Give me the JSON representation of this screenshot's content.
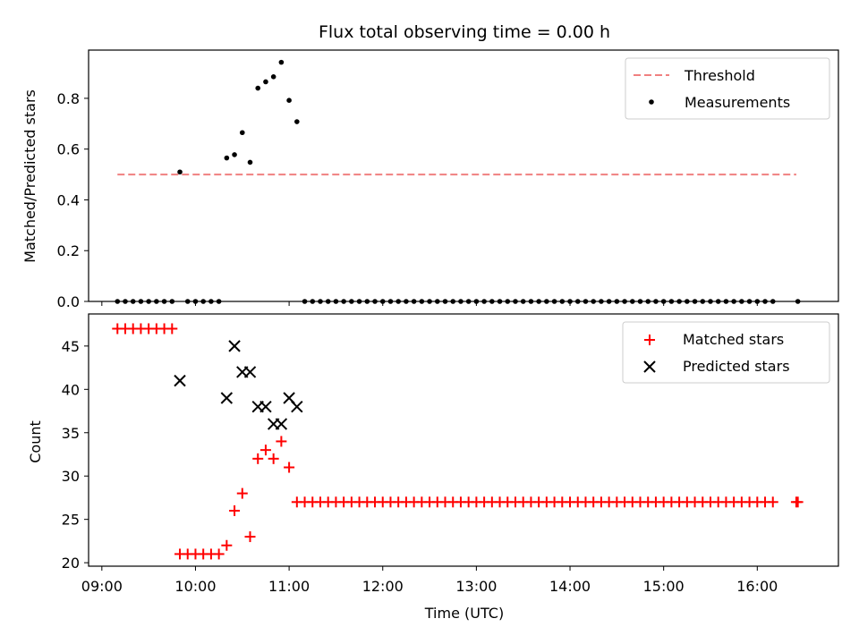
{
  "title": "Flux total observing time = 0.00 h",
  "chart_data": [
    {
      "type": "scatter",
      "ylabel": "Matched/Predicted stars",
      "ylim": [
        0,
        0.99
      ],
      "yticks": [
        0,
        0.2,
        0.4,
        0.6,
        0.8
      ],
      "ytick_labels": [
        "0.0",
        "0.2",
        "0.4",
        "0.6",
        "0.8"
      ],
      "legend_position": "top-right",
      "threshold": {
        "name": "Threshold",
        "y": 0.5,
        "x_start": "09:10",
        "x_end": "16:25",
        "color": "#f08080"
      },
      "measurements": {
        "name": "Measurements",
        "color": "#000000",
        "x": [
          "09:10",
          "09:15",
          "09:20",
          "09:25",
          "09:30",
          "09:35",
          "09:40",
          "09:45",
          "09:50",
          "09:55",
          "10:00",
          "10:05",
          "10:10",
          "10:15",
          "10:20",
          "10:25",
          "10:30",
          "10:35",
          "10:40",
          "10:45",
          "10:50",
          "10:55",
          "11:00",
          "11:05",
          "11:10",
          "11:15",
          "11:20",
          "11:25",
          "11:30",
          "11:35",
          "11:40",
          "11:45",
          "11:50",
          "11:55",
          "12:00",
          "12:05",
          "12:10",
          "12:15",
          "12:20",
          "12:25",
          "12:30",
          "12:35",
          "12:40",
          "12:45",
          "12:50",
          "12:55",
          "13:00",
          "13:05",
          "13:10",
          "13:15",
          "13:20",
          "13:25",
          "13:30",
          "13:35",
          "13:40",
          "13:45",
          "13:50",
          "13:55",
          "14:00",
          "14:05",
          "14:10",
          "14:15",
          "14:20",
          "14:25",
          "14:30",
          "14:35",
          "14:40",
          "14:45",
          "14:50",
          "14:55",
          "15:00",
          "15:05",
          "15:10",
          "15:15",
          "15:20",
          "15:25",
          "15:30",
          "15:35",
          "15:40",
          "15:45",
          "15:50",
          "15:55",
          "16:00",
          "16:05",
          "16:10",
          "16:26"
        ],
        "y": [
          0,
          0,
          0,
          0,
          0,
          0,
          0,
          0,
          0.51,
          0,
          0,
          0,
          0,
          0,
          0.565,
          0.578,
          0.665,
          0.548,
          0.84,
          0.865,
          0.885,
          0.942,
          0.792,
          0.708,
          0,
          0,
          0,
          0,
          0,
          0,
          0,
          0,
          0,
          0,
          0,
          0,
          0,
          0,
          0,
          0,
          0,
          0,
          0,
          0,
          0,
          0,
          0,
          0,
          0,
          0,
          0,
          0,
          0,
          0,
          0,
          0,
          0,
          0,
          0,
          0,
          0,
          0,
          0,
          0,
          0,
          0,
          0,
          0,
          0,
          0,
          0,
          0,
          0,
          0,
          0,
          0,
          0,
          0,
          0,
          0,
          0,
          0,
          0,
          0,
          0,
          0
        ]
      }
    },
    {
      "type": "scatter",
      "xlabel": "Time (UTC)",
      "ylabel": "Count",
      "ylim": [
        19.6,
        48.7
      ],
      "yticks": [
        20,
        25,
        30,
        35,
        40,
        45
      ],
      "ytick_labels": [
        "20",
        "25",
        "30",
        "35",
        "40",
        "45"
      ],
      "xticks": [
        "09:00",
        "10:00",
        "11:00",
        "12:00",
        "13:00",
        "14:00",
        "15:00",
        "16:00"
      ],
      "legend_position": "top-right",
      "matched": {
        "name": "Matched stars",
        "color": "#ff0000",
        "x": [
          "09:10",
          "09:15",
          "09:20",
          "09:25",
          "09:30",
          "09:35",
          "09:40",
          "09:45",
          "09:50",
          "09:55",
          "10:00",
          "10:05",
          "10:10",
          "10:15",
          "10:20",
          "10:25",
          "10:30",
          "10:35",
          "10:40",
          "10:45",
          "10:50",
          "10:55",
          "11:00",
          "11:05",
          "11:10",
          "11:15",
          "11:20",
          "11:25",
          "11:30",
          "11:35",
          "11:40",
          "11:45",
          "11:50",
          "11:55",
          "12:00",
          "12:05",
          "12:10",
          "12:15",
          "12:20",
          "12:25",
          "12:30",
          "12:35",
          "12:40",
          "12:45",
          "12:50",
          "12:55",
          "13:00",
          "13:05",
          "13:10",
          "13:15",
          "13:20",
          "13:25",
          "13:30",
          "13:35",
          "13:40",
          "13:45",
          "13:50",
          "13:55",
          "14:00",
          "14:05",
          "14:10",
          "14:15",
          "14:20",
          "14:25",
          "14:30",
          "14:35",
          "14:40",
          "14:45",
          "14:50",
          "14:55",
          "15:00",
          "15:05",
          "15:10",
          "15:15",
          "15:20",
          "15:25",
          "15:30",
          "15:35",
          "15:40",
          "15:45",
          "15:50",
          "15:55",
          "16:00",
          "16:05",
          "16:10",
          "16:25",
          "16:26"
        ],
        "y": [
          47,
          47,
          47,
          47,
          47,
          47,
          47,
          47,
          21,
          21,
          21,
          21,
          21,
          21,
          22,
          26,
          28,
          23,
          32,
          33,
          32,
          34,
          31,
          27,
          27,
          27,
          27,
          27,
          27,
          27,
          27,
          27,
          27,
          27,
          27,
          27,
          27,
          27,
          27,
          27,
          27,
          27,
          27,
          27,
          27,
          27,
          27,
          27,
          27,
          27,
          27,
          27,
          27,
          27,
          27,
          27,
          27,
          27,
          27,
          27,
          27,
          27,
          27,
          27,
          27,
          27,
          27,
          27,
          27,
          27,
          27,
          27,
          27,
          27,
          27,
          27,
          27,
          27,
          27,
          27,
          27,
          27,
          27,
          27,
          27,
          27,
          27
        ]
      },
      "predicted": {
        "name": "Predicted stars",
        "color": "#000000",
        "x": [
          "09:50",
          "10:20",
          "10:25",
          "10:30",
          "10:35",
          "10:40",
          "10:45",
          "10:50",
          "10:55",
          "11:00",
          "11:05"
        ],
        "y": [
          41,
          39,
          45,
          42,
          42,
          38,
          38,
          36,
          36,
          39,
          38
        ]
      }
    }
  ]
}
